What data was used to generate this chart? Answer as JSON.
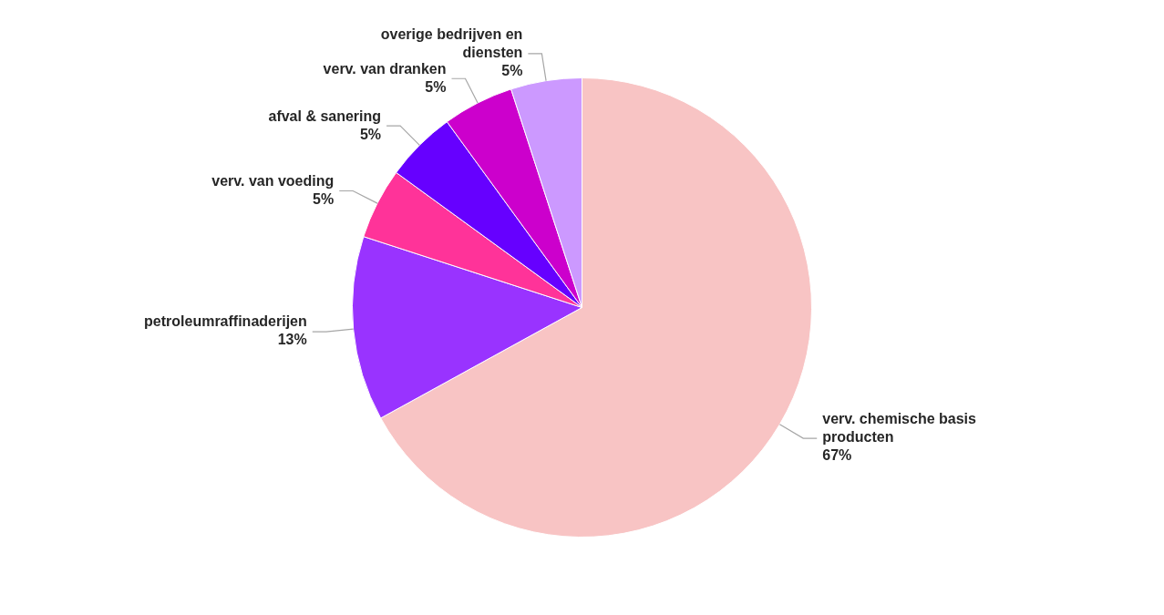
{
  "chart_data": {
    "type": "pie",
    "categories": [
      "verv. chemische basis producten",
      "petroleumraffinaderijen",
      "verv. van voeding",
      "afval & sanering",
      "verv. van dranken",
      "overige bedrijven en diensten"
    ],
    "values": [
      67,
      13,
      5,
      5,
      5,
      5
    ],
    "colors": [
      "#f8c4c4",
      "#9933ff",
      "#ff3399",
      "#6600ff",
      "#cc00cc",
      "#cc99ff"
    ],
    "value_labels": [
      "67%",
      "13%",
      "5%",
      "5%",
      "5%",
      "5%"
    ],
    "legend": false
  }
}
